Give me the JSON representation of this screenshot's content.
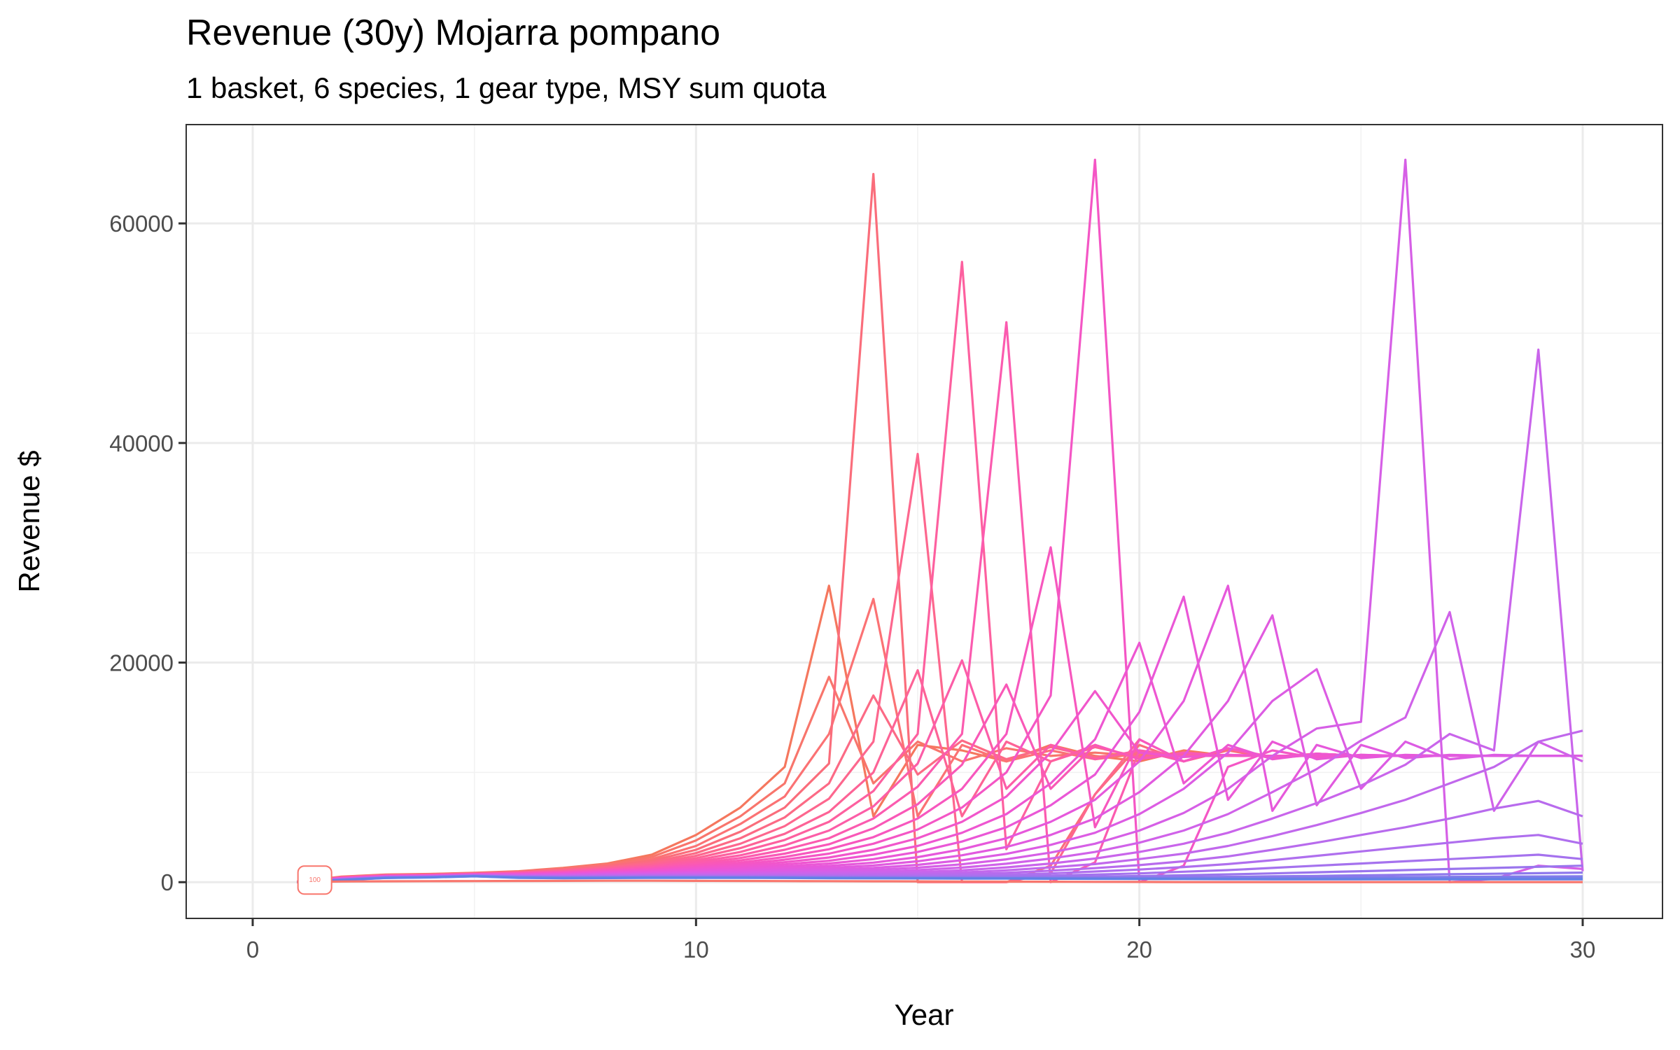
{
  "chart_data": {
    "type": "line",
    "title": "Revenue (30y) Mojarra pompano",
    "subtitle": "1 basket, 6 species, 1 gear type, MSY sum quota",
    "xlabel": "Year",
    "ylabel": "Revenue $",
    "xlim": [
      -1.5,
      31.8
    ],
    "ylim": [
      -3300,
      69000
    ],
    "x_ticks": [
      0,
      10,
      20,
      30
    ],
    "x_tick_labels": [
      "0",
      "10",
      "20",
      "30"
    ],
    "y_ticks": [
      0,
      20000,
      40000,
      60000
    ],
    "y_tick_labels": [
      "0",
      "20000",
      "40000",
      "60000"
    ],
    "grid": true,
    "legend": "none",
    "label_text": "100",
    "label_year": 1.4,
    "label_color": "#F8766D",
    "x": [
      1,
      2,
      3,
      4,
      5,
      6,
      7,
      8,
      9,
      10,
      11,
      12,
      13,
      14,
      15,
      16,
      17,
      18,
      19,
      20,
      21,
      22,
      23,
      24,
      25,
      26,
      27,
      28,
      29,
      30
    ],
    "series": [
      {
        "color": "#F5775E",
        "values": [
          50,
          500,
          700,
          750,
          850,
          1000,
          1300,
          1700,
          2500,
          4300,
          6800,
          10500,
          27000,
          6000,
          12500,
          12000,
          11000,
          12500,
          11500,
          11000,
          12000,
          11500,
          11500,
          11500,
          11500,
          11500,
          11500,
          11500,
          11500,
          11500
        ]
      },
      {
        "color": "#F8756C",
        "values": [
          45,
          480,
          680,
          730,
          830,
          970,
          1250,
          1650,
          2300,
          3800,
          6000,
          9000,
          18700,
          9000,
          12800,
          11000,
          12200,
          11500,
          11800,
          11500,
          11600,
          11500,
          11500,
          11500,
          11500,
          11500,
          11500,
          11500,
          11500,
          11500
        ]
      },
      {
        "color": "#FB7274",
        "values": [
          40,
          470,
          660,
          710,
          810,
          950,
          1200,
          1550,
          2100,
          3300,
          5300,
          7800,
          13500,
          25800,
          6000,
          12500,
          11000,
          12000,
          11200,
          11700,
          11500,
          11500,
          11500,
          11500,
          11500,
          11500,
          11500,
          11500,
          11500,
          11500
        ]
      },
      {
        "color": "#FA6D7B",
        "values": [
          38,
          460,
          650,
          700,
          800,
          930,
          1150,
          1480,
          1950,
          2950,
          4600,
          6800,
          10800,
          64500,
          0,
          0,
          0,
          1500,
          8000,
          12500,
          11000,
          12000,
          11300,
          11700,
          11500,
          11500,
          11500,
          11500,
          11500,
          11500
        ]
      },
      {
        "color": "#FC6A85",
        "values": [
          35,
          450,
          640,
          690,
          790,
          910,
          1100,
          1400,
          1800,
          2650,
          4000,
          5900,
          9000,
          17000,
          9800,
          12900,
          11200,
          12300,
          11400,
          11800,
          11500,
          11500,
          11500,
          11500,
          11500,
          11500,
          11500,
          11500,
          11500,
          11500
        ]
      },
      {
        "color": "#FD678E",
        "values": [
          33,
          440,
          630,
          680,
          780,
          890,
          1060,
          1330,
          1680,
          2400,
          3500,
          5100,
          7600,
          12800,
          39000,
          0,
          0,
          800,
          8000,
          13000,
          11000,
          12200,
          11400,
          11700,
          11500,
          11500,
          11500,
          11500,
          11500,
          11500
        ]
      },
      {
        "color": "#FD6396",
        "values": [
          30,
          430,
          620,
          670,
          770,
          870,
          1020,
          1270,
          1570,
          2180,
          3100,
          4400,
          6400,
          10000,
          19300,
          6000,
          12800,
          11000,
          12300,
          11400,
          11700,
          11500,
          11500,
          11500,
          11500,
          11500,
          11500,
          11500,
          11500,
          11500
        ]
      },
      {
        "color": "#FD609F",
        "values": [
          28,
          420,
          610,
          660,
          760,
          850,
          990,
          1210,
          1470,
          1990,
          2750,
          3850,
          5500,
          8300,
          13500,
          56500,
          3000,
          11000,
          12500,
          11200,
          11800,
          11500,
          11500,
          11500,
          11500,
          11500,
          11500,
          11500,
          11500,
          11500
        ]
      },
      {
        "color": "#FC5DA7",
        "values": [
          26,
          410,
          600,
          650,
          750,
          830,
          960,
          1160,
          1390,
          1830,
          2450,
          3350,
          4700,
          6900,
          10800,
          20200,
          8500,
          12500,
          11200,
          12000,
          11500,
          11600,
          11500,
          11500,
          11500,
          11500,
          11500,
          11500,
          11500,
          11500
        ]
      },
      {
        "color": "#FB5BAF",
        "values": [
          24,
          400,
          590,
          640,
          740,
          810,
          930,
          1110,
          1310,
          1690,
          2200,
          2950,
          4000,
          5800,
          8700,
          13500,
          51000,
          0,
          1800,
          12000,
          11000,
          12200,
          11300,
          11700,
          11500,
          11500,
          11500,
          11500,
          11500,
          11500
        ]
      },
      {
        "color": "#F958B7",
        "values": [
          22,
          390,
          580,
          630,
          730,
          790,
          900,
          1060,
          1240,
          1560,
          1980,
          2600,
          3450,
          4900,
          7100,
          10700,
          18000,
          8500,
          12500,
          11200,
          11800,
          11500,
          11500,
          11500,
          11500,
          11500,
          11500,
          11500,
          11500,
          11500
        ]
      },
      {
        "color": "#F757BE",
        "values": [
          20,
          380,
          570,
          620,
          720,
          770,
          870,
          1020,
          1170,
          1440,
          1780,
          2300,
          3000,
          4100,
          5800,
          8500,
          13500,
          30500,
          5000,
          13000,
          11000,
          12200,
          11300,
          11600,
          11500,
          11500,
          11500,
          11500,
          11500,
          11500
        ]
      },
      {
        "color": "#F456C5",
        "values": [
          18,
          370,
          560,
          610,
          710,
          750,
          840,
          980,
          1110,
          1330,
          1610,
          2050,
          2600,
          3500,
          4800,
          6800,
          10000,
          17000,
          65800,
          0,
          1500,
          10500,
          12000,
          11300,
          11600,
          11500,
          11500,
          11500,
          11500,
          11500
        ]
      },
      {
        "color": "#F156CB",
        "values": [
          16,
          360,
          550,
          600,
          700,
          730,
          810,
          940,
          1050,
          1230,
          1460,
          1820,
          2250,
          2950,
          4000,
          5500,
          7800,
          11800,
          17400,
          11800,
          11400,
          11600,
          11500,
          11500,
          11500,
          11500,
          11500,
          11500,
          11500,
          11500
        ]
      },
      {
        "color": "#EE56D1",
        "values": [
          15,
          350,
          540,
          590,
          690,
          710,
          780,
          900,
          990,
          1140,
          1320,
          1620,
          1950,
          2500,
          3300,
          4500,
          6200,
          9000,
          13000,
          21800,
          9000,
          12500,
          11200,
          11700,
          11500,
          11500,
          11500,
          11500,
          11500,
          11500
        ]
      },
      {
        "color": "#EA57D6",
        "values": [
          14,
          340,
          530,
          580,
          680,
          690,
          750,
          860,
          940,
          1060,
          1200,
          1440,
          1700,
          2100,
          2750,
          3700,
          5000,
          7000,
          9800,
          15500,
          26000,
          7500,
          12800,
          11200,
          11600,
          11500,
          11500,
          11500,
          11500,
          11500
        ]
      },
      {
        "color": "#E658DB",
        "values": [
          13,
          330,
          520,
          570,
          670,
          670,
          720,
          820,
          890,
          980,
          1090,
          1280,
          1480,
          1780,
          2280,
          3000,
          4000,
          5500,
          7500,
          11000,
          16500,
          27000,
          6500,
          12500,
          11300,
          11600,
          11500,
          11500,
          11500,
          11500
        ]
      },
      {
        "color": "#E15ADF",
        "values": [
          12,
          320,
          510,
          560,
          660,
          650,
          690,
          780,
          840,
          910,
          990,
          1140,
          1300,
          1520,
          1900,
          2450,
          3200,
          4300,
          5800,
          8200,
          11500,
          16500,
          24300,
          7000,
          12500,
          11300,
          11600,
          11500,
          11500,
          11500
        ]
      },
      {
        "color": "#DC5CE3",
        "values": [
          11,
          310,
          500,
          550,
          650,
          630,
          660,
          740,
          790,
          850,
          900,
          1020,
          1140,
          1300,
          1580,
          2000,
          2580,
          3400,
          4500,
          6200,
          8500,
          11800,
          16500,
          19400,
          8500,
          12800,
          11200,
          11600,
          11500,
          11500
        ]
      },
      {
        "color": "#D65FE6",
        "values": [
          10,
          300,
          490,
          540,
          640,
          610,
          630,
          700,
          740,
          790,
          820,
          910,
          1000,
          1120,
          1320,
          1630,
          2080,
          2700,
          3500,
          4700,
          6300,
          8500,
          11500,
          14000,
          14600,
          65800,
          0,
          300,
          1500,
          1200
        ]
      },
      {
        "color": "#D062E9",
        "values": [
          10,
          290,
          480,
          530,
          630,
          590,
          600,
          660,
          700,
          730,
          750,
          820,
          880,
          960,
          1100,
          1330,
          1680,
          2150,
          2750,
          3600,
          4700,
          6200,
          8200,
          10300,
          12900,
          15000,
          24600,
          6500,
          12800,
          11000
        ]
      },
      {
        "color": "#C965EB",
        "values": [
          9,
          280,
          470,
          520,
          620,
          570,
          570,
          620,
          660,
          680,
          690,
          740,
          780,
          830,
          920,
          1080,
          1350,
          1700,
          2150,
          2750,
          3500,
          4500,
          5800,
          7200,
          8800,
          10700,
          13500,
          12000,
          48500,
          1000
        ]
      },
      {
        "color": "#C168EC",
        "values": [
          8,
          270,
          460,
          510,
          610,
          550,
          540,
          580,
          620,
          630,
          630,
          660,
          690,
          720,
          780,
          880,
          1080,
          1350,
          1650,
          2100,
          2600,
          3300,
          4200,
          5200,
          6300,
          7500,
          9000,
          10500,
          12800,
          13800
        ]
      },
      {
        "color": "#B86BED",
        "values": [
          8,
          260,
          450,
          500,
          600,
          530,
          510,
          540,
          580,
          580,
          580,
          600,
          610,
          630,
          660,
          720,
          860,
          1050,
          1280,
          1550,
          1900,
          2350,
          2950,
          3600,
          4300,
          5000,
          5800,
          6700,
          7400,
          6000
        ]
      },
      {
        "color": "#AF6FEE",
        "values": [
          7,
          250,
          440,
          490,
          590,
          510,
          480,
          500,
          540,
          540,
          540,
          540,
          550,
          550,
          560,
          590,
          680,
          800,
          970,
          1150,
          1380,
          1650,
          2000,
          2400,
          2800,
          3200,
          3600,
          4000,
          4300,
          3500
        ]
      },
      {
        "color": "#A572EE",
        "values": [
          7,
          240,
          430,
          480,
          580,
          490,
          460,
          470,
          500,
          500,
          500,
          490,
          490,
          490,
          490,
          500,
          540,
          600,
          700,
          800,
          950,
          1100,
          1300,
          1500,
          1700,
          1900,
          2100,
          2300,
          2500,
          2100
        ]
      },
      {
        "color": "#9A75ED",
        "values": [
          6,
          230,
          420,
          470,
          570,
          470,
          440,
          450,
          470,
          470,
          470,
          460,
          450,
          440,
          440,
          440,
          450,
          470,
          510,
          560,
          630,
          710,
          800,
          900,
          1000,
          1100,
          1200,
          1300,
          1400,
          1500
        ]
      },
      {
        "color": "#8E78EC",
        "values": [
          6,
          220,
          410,
          460,
          560,
          450,
          420,
          430,
          450,
          450,
          450,
          440,
          420,
          410,
          400,
          390,
          390,
          400,
          410,
          430,
          460,
          490,
          530,
          570,
          620,
          670,
          720,
          770,
          820,
          870
        ]
      },
      {
        "color": "#817BEA",
        "values": [
          5,
          210,
          400,
          450,
          550,
          430,
          400,
          410,
          430,
          430,
          430,
          420,
          400,
          390,
          380,
          370,
          360,
          360,
          360,
          360,
          370,
          380,
          400,
          420,
          440,
          460,
          480,
          500,
          520,
          540
        ]
      },
      {
        "color": "#727EE8",
        "values": [
          5,
          200,
          390,
          440,
          540,
          410,
          380,
          390,
          410,
          410,
          410,
          400,
          380,
          370,
          360,
          350,
          340,
          330,
          320,
          310,
          310,
          310,
          310,
          310,
          320,
          330,
          340,
          350,
          360,
          370
        ]
      },
      {
        "color": "#6280E5",
        "values": [
          5,
          190,
          380,
          430,
          530,
          390,
          360,
          370,
          390,
          390,
          390,
          380,
          360,
          350,
          340,
          330,
          320,
          310,
          300,
          290,
          280,
          270,
          260,
          260,
          260,
          260,
          260,
          260,
          260,
          260
        ]
      },
      {
        "color": "#F8766D",
        "values": [
          5,
          60,
          80,
          90,
          100,
          110,
          120,
          130,
          130,
          120,
          110,
          100,
          90,
          80,
          70,
          60,
          50,
          40,
          30,
          20,
          10,
          10,
          10,
          10,
          10,
          10,
          10,
          10,
          10,
          10
        ]
      }
    ]
  }
}
